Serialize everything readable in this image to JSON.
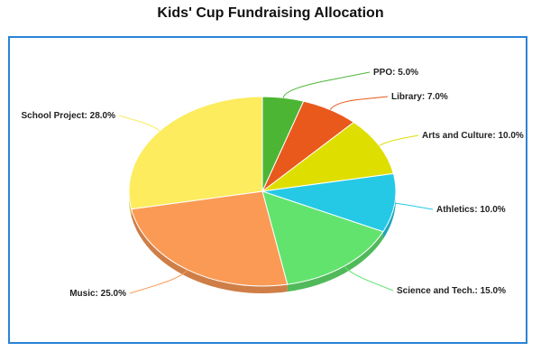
{
  "chart_data": {
    "type": "pie",
    "title": "Kids' Cup Fundraising Allocation",
    "label_suffix": "%",
    "slices": [
      {
        "label": "PPO",
        "value": 5.0,
        "color": "#4cb634"
      },
      {
        "label": "Library",
        "value": 7.0,
        "color": "#e9591c"
      },
      {
        "label": "Arts and Culture",
        "value": 10.0,
        "color": "#dede00"
      },
      {
        "label": "Athletics",
        "value": 10.0,
        "color": "#25c9e6"
      },
      {
        "label": "Science and Tech.",
        "value": 15.0,
        "color": "#62e36e"
      },
      {
        "label": "Music",
        "value": 25.0,
        "color": "#fb9a55"
      },
      {
        "label": "School Project",
        "value": 28.0,
        "color": "#fcec5e"
      }
    ]
  }
}
